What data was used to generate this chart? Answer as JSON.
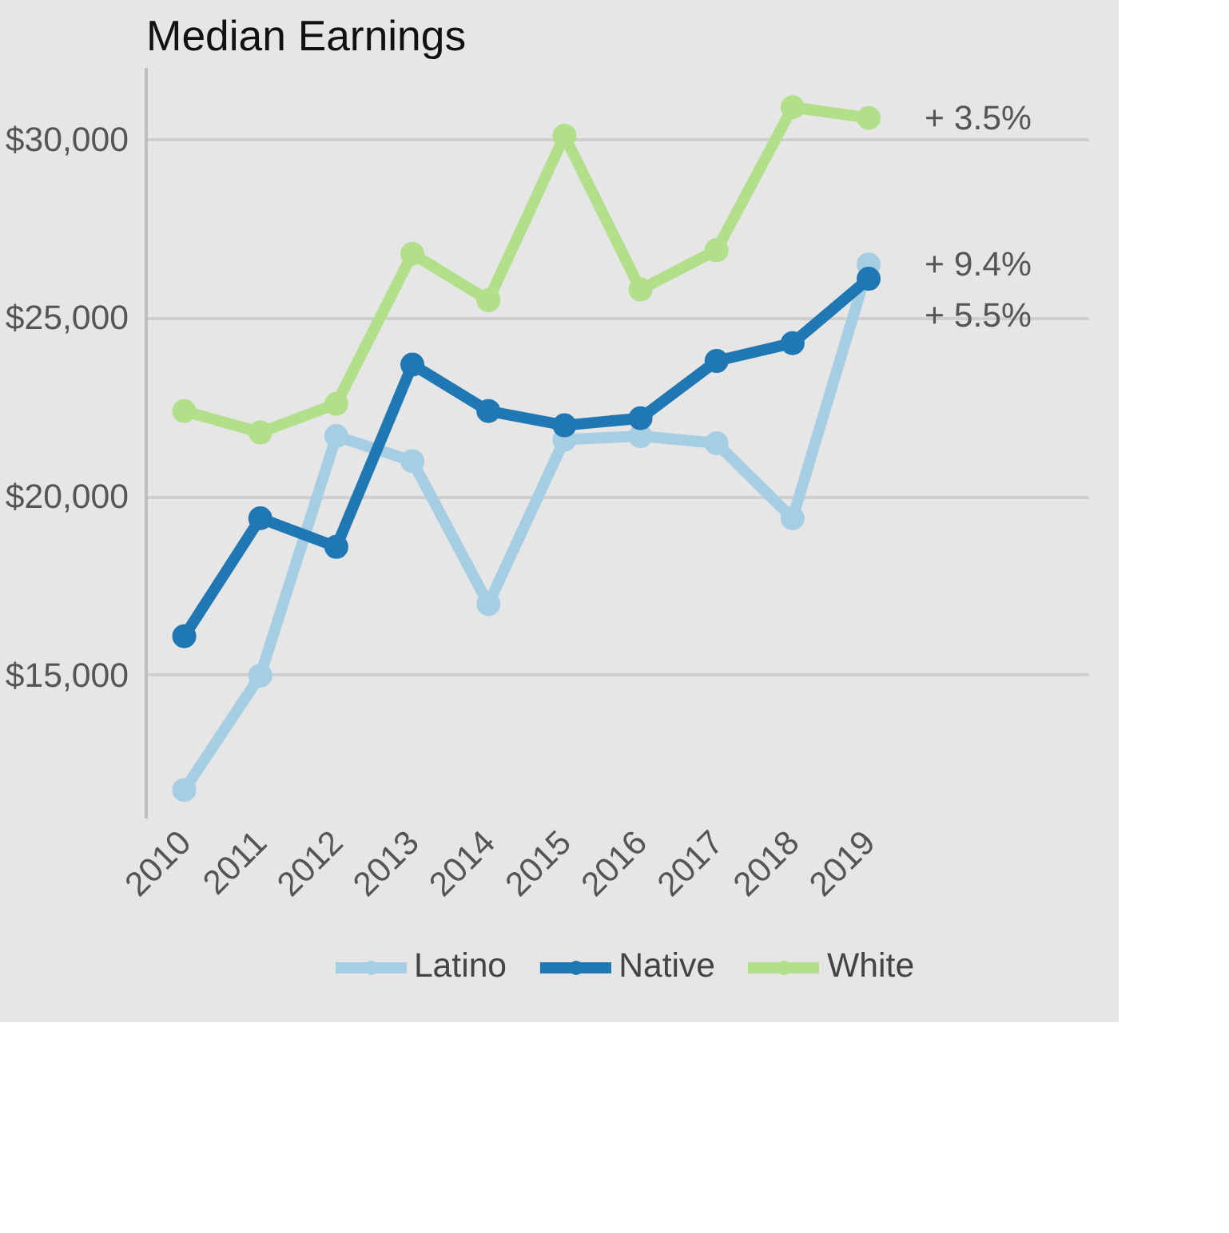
{
  "chart_data": {
    "type": "line",
    "title": "Median Earnings",
    "categories": [
      "2010",
      "2011",
      "2012",
      "2013",
      "2014",
      "2015",
      "2016",
      "2017",
      "2018",
      "2019"
    ],
    "series": [
      {
        "name": "Latino",
        "color": "#a6cee3",
        "values": [
          11800,
          15000,
          21700,
          21000,
          17000,
          21600,
          21700,
          21500,
          19400,
          26500
        ]
      },
      {
        "name": "Native",
        "color": "#1f78b4",
        "values": [
          16100,
          19400,
          18600,
          23700,
          22400,
          22000,
          22200,
          23800,
          24300,
          26100
        ]
      },
      {
        "name": "White",
        "color": "#b2df8a",
        "values": [
          22400,
          21800,
          22600,
          26800,
          25500,
          30100,
          25800,
          26900,
          30900,
          30600
        ]
      }
    ],
    "ylim": [
      11000,
      32000
    ],
    "yticks": [
      {
        "value": 15000,
        "label": "$15,000"
      },
      {
        "value": 20000,
        "label": "$20,000"
      },
      {
        "value": 25000,
        "label": "$25,000"
      },
      {
        "value": 30000,
        "label": "$30,000"
      }
    ],
    "grid": "y",
    "legend": "bottom",
    "marker": "circle",
    "line_style": "solid",
    "annotations": [
      {
        "text": "+ 3.5%",
        "x": "2019",
        "y": 30600
      },
      {
        "text": "+ 9.4%",
        "x": "2019",
        "y": 26500
      },
      {
        "text": "+ 5.5%",
        "x": "2019",
        "y": 26100
      }
    ]
  }
}
